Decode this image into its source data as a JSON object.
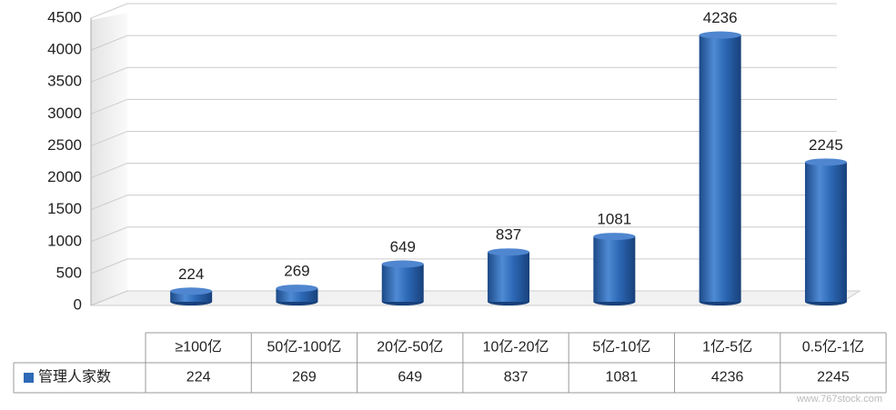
{
  "chart_data": {
    "type": "bar",
    "categories": [
      "≥100亿",
      "50亿-100亿",
      "20亿-50亿",
      "10亿-20亿",
      "5亿-10亿",
      "1亿-5亿",
      "0.5亿-1亿"
    ],
    "series": [
      {
        "name": "管理人家数",
        "color": "#2e6ab8",
        "values": [
          224,
          269,
          649,
          837,
          1081,
          4236,
          2245
        ]
      }
    ],
    "ylim": [
      0,
      4500
    ],
    "yticks": [
      0,
      500,
      1000,
      1500,
      2000,
      2500,
      3000,
      3500,
      4000,
      4500
    ],
    "grid": true,
    "legend": "table",
    "watermark": "www.767stock.com"
  }
}
